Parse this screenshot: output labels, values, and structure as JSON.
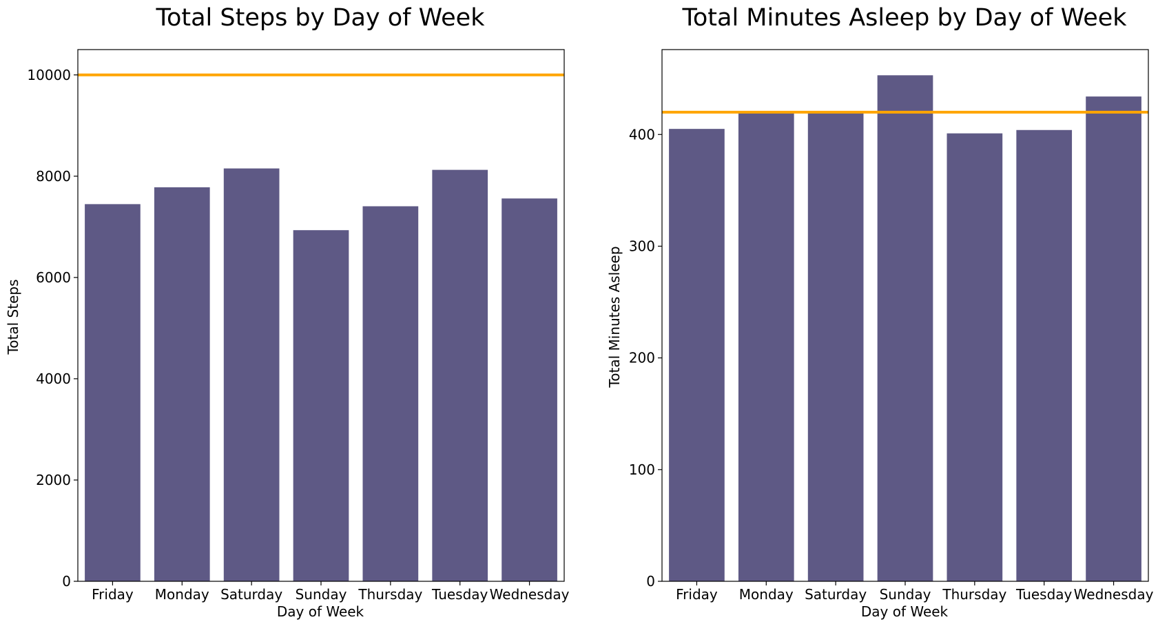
{
  "chart_data": [
    {
      "type": "bar",
      "title": "Total Steps by Day of Week",
      "xlabel": "Day of Week",
      "ylabel": "Total Steps",
      "categories": [
        "Friday",
        "Monday",
        "Saturday",
        "Sunday",
        "Thursday",
        "Tuesday",
        "Wednesday"
      ],
      "values": [
        7448,
        7781,
        8153,
        6934,
        7406,
        8125,
        7560
      ],
      "ylim": [
        0,
        10500
      ],
      "yticks": [
        0,
        2000,
        4000,
        6000,
        8000,
        10000
      ],
      "reference_line": 10000,
      "grid": false,
      "legend": "none",
      "bar_color": "#5e5985",
      "line_color": "#ffa500"
    },
    {
      "type": "bar",
      "title": "Total Minutes Asleep by Day of Week",
      "xlabel": "Day of Week",
      "ylabel": "Total Minutes Asleep",
      "categories": [
        "Friday",
        "Monday",
        "Saturday",
        "Sunday",
        "Thursday",
        "Tuesday",
        "Wednesday"
      ],
      "values": [
        405,
        420,
        420,
        453,
        401,
        404,
        434
      ],
      "ylim": [
        0,
        476
      ],
      "yticks": [
        0,
        100,
        200,
        300,
        400
      ],
      "reference_line": 420,
      "grid": false,
      "legend": "none",
      "bar_color": "#5e5985",
      "line_color": "#ffa500"
    }
  ]
}
